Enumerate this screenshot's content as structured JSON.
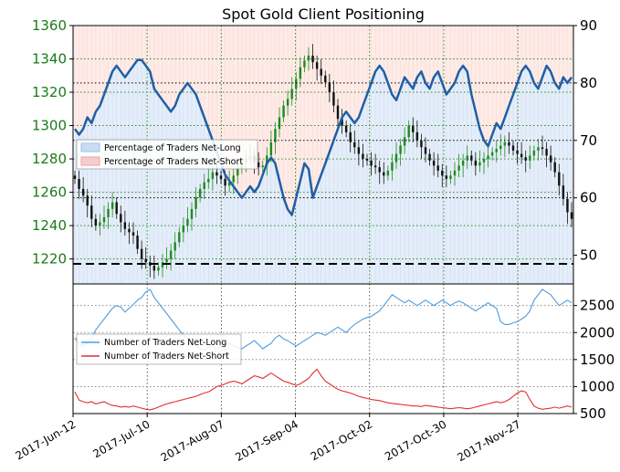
{
  "chart_data": [
    {
      "type": "line",
      "title": "Spot Gold Client Positioning",
      "x_dates": [
        "2017-Jun-12",
        "2017-Jul-10",
        "2017-Aug-07",
        "2017-Sep-04",
        "2017-Oct-02",
        "2017-Oct-30",
        "2017-Nov-27"
      ],
      "left_axis": {
        "ylim": [
          1205,
          1360
        ],
        "ticks": [
          1220,
          1240,
          1260,
          1280,
          1300,
          1320,
          1340,
          1360
        ],
        "color": "#1a7a1a"
      },
      "right_axis": {
        "ylim": [
          45,
          90
        ],
        "ticks": [
          50,
          60,
          70,
          80,
          90
        ]
      },
      "reference_lines": {
        "right_values": [
          80,
          70,
          60
        ],
        "dashed_right_value": 48.5
      },
      "legend": [
        {
          "label": "Percentage of Traders Net-Long",
          "color": "#9ec3ea"
        },
        {
          "label": "Percentage of Traders Net-Short",
          "color": "#f2a5a5"
        }
      ],
      "price_close": [
        1268,
        1262,
        1258,
        1252,
        1244,
        1240,
        1242,
        1245,
        1250,
        1254,
        1247,
        1242,
        1238,
        1236,
        1234,
        1226,
        1220,
        1218,
        1216,
        1213,
        1215,
        1218,
        1220,
        1225,
        1230,
        1236,
        1240,
        1244,
        1250,
        1257,
        1262,
        1266,
        1268,
        1272,
        1270,
        1268,
        1264,
        1266,
        1270,
        1274,
        1278,
        1280,
        1282,
        1278,
        1275,
        1276,
        1282,
        1290,
        1298,
        1305,
        1312,
        1316,
        1322,
        1328,
        1335,
        1339,
        1342,
        1338,
        1334,
        1330,
        1326,
        1320,
        1312,
        1304,
        1300,
        1296,
        1290,
        1287,
        1283,
        1280,
        1279,
        1276,
        1275,
        1272,
        1270,
        1273,
        1278,
        1283,
        1288,
        1293,
        1300,
        1296,
        1291,
        1287,
        1283,
        1279,
        1276,
        1273,
        1270,
        1268,
        1270,
        1273,
        1276,
        1279,
        1282,
        1279,
        1276,
        1278,
        1280,
        1282,
        1284,
        1286,
        1288,
        1290,
        1288,
        1285,
        1283,
        1281,
        1279,
        1282,
        1285,
        1287,
        1286,
        1282,
        1278,
        1272,
        1264,
        1256,
        1248,
        1244
      ],
      "pct_net_long": [
        72,
        71,
        72,
        74,
        73,
        75,
        76,
        78,
        80,
        82,
        83,
        82,
        81,
        82,
        83,
        84,
        84,
        83,
        82,
        79,
        78,
        77,
        76,
        75,
        76,
        78,
        79,
        80,
        79,
        78,
        76,
        74,
        72,
        70,
        68,
        66,
        64,
        63,
        62,
        61,
        60,
        61,
        62,
        61,
        62,
        64,
        66,
        67,
        66,
        63,
        60,
        58,
        57,
        60,
        63,
        66,
        65,
        60,
        62,
        64,
        66,
        68,
        70,
        72,
        74,
        75,
        74,
        73,
        74,
        76,
        78,
        80,
        82,
        83,
        82,
        80,
        78,
        77,
        79,
        81,
        80,
        79,
        81,
        82,
        80,
        79,
        81,
        82,
        80,
        78,
        79,
        80,
        82,
        83,
        82,
        78,
        75,
        72,
        70,
        69,
        71,
        73,
        72,
        74,
        76,
        78,
        80,
        82,
        83,
        82,
        80,
        79,
        81,
        83,
        82,
        80,
        79,
        81,
        80,
        81
      ],
      "series": [
        {
          "name": "Percentage of Traders Net-Long",
          "axis": "right",
          "color": "#1f5fa6"
        }
      ]
    },
    {
      "type": "line",
      "ylim": [
        500,
        2900
      ],
      "ticks": [
        500,
        1000,
        1500,
        2000,
        2500
      ],
      "legend": [
        {
          "label": "Number of Traders Net-Long",
          "color": "#4a9de0"
        },
        {
          "label": "Number of Traders Net-Short",
          "color": "#e03030"
        }
      ],
      "series": [
        {
          "name": "Number of Traders Net-Long",
          "color": "#4a9de0",
          "values": [
            1900,
            1780,
            1750,
            1800,
            1900,
            2050,
            2150,
            2250,
            2350,
            2450,
            2500,
            2470,
            2380,
            2450,
            2520,
            2600,
            2650,
            2750,
            2800,
            2650,
            2550,
            2450,
            2350,
            2250,
            2150,
            2050,
            1950,
            1880,
            1800,
            1750,
            1700,
            1680,
            1720,
            1750,
            1700,
            1720,
            1780,
            1800,
            1750,
            1720,
            1700,
            1750,
            1800,
            1850,
            1780,
            1700,
            1750,
            1800,
            1900,
            1950,
            1880,
            1850,
            1800,
            1750,
            1800,
            1850,
            1900,
            1950,
            2000,
            1980,
            1950,
            2000,
            2050,
            2100,
            2050,
            2000,
            2080,
            2150,
            2200,
            2250,
            2280,
            2300,
            2350,
            2400,
            2500,
            2600,
            2700,
            2650,
            2600,
            2550,
            2600,
            2550,
            2500,
            2550,
            2600,
            2550,
            2500,
            2550,
            2600,
            2550,
            2500,
            2550,
            2580,
            2550,
            2500,
            2450,
            2400,
            2450,
            2500,
            2550,
            2500,
            2450,
            2200,
            2150,
            2150,
            2180,
            2200,
            2250,
            2300,
            2400,
            2600,
            2700,
            2800,
            2750,
            2700,
            2600,
            2500,
            2550,
            2600,
            2550
          ]
        },
        {
          "name": "Number of Traders Net-Short",
          "color": "#e03030",
          "values": [
            900,
            750,
            720,
            700,
            720,
            680,
            700,
            720,
            680,
            650,
            640,
            620,
            630,
            620,
            640,
            620,
            600,
            580,
            570,
            590,
            620,
            650,
            680,
            700,
            720,
            740,
            760,
            780,
            800,
            820,
            850,
            880,
            900,
            950,
            1000,
            1020,
            1050,
            1080,
            1100,
            1080,
            1050,
            1100,
            1150,
            1200,
            1180,
            1150,
            1200,
            1250,
            1200,
            1150,
            1100,
            1080,
            1050,
            1020,
            1050,
            1100,
            1150,
            1250,
            1320,
            1200,
            1100,
            1050,
            1000,
            950,
            920,
            900,
            880,
            850,
            820,
            800,
            780,
            760,
            750,
            740,
            720,
            700,
            690,
            680,
            670,
            660,
            650,
            640,
            640,
            630,
            650,
            640,
            630,
            620,
            610,
            600,
            590,
            600,
            610,
            600,
            590,
            600,
            620,
            640,
            660,
            680,
            700,
            720,
            700,
            720,
            760,
            820,
            880,
            920,
            900,
            760,
            640,
            600,
            580,
            590,
            600,
            620,
            600,
            620,
            640,
            620
          ]
        }
      ]
    }
  ]
}
